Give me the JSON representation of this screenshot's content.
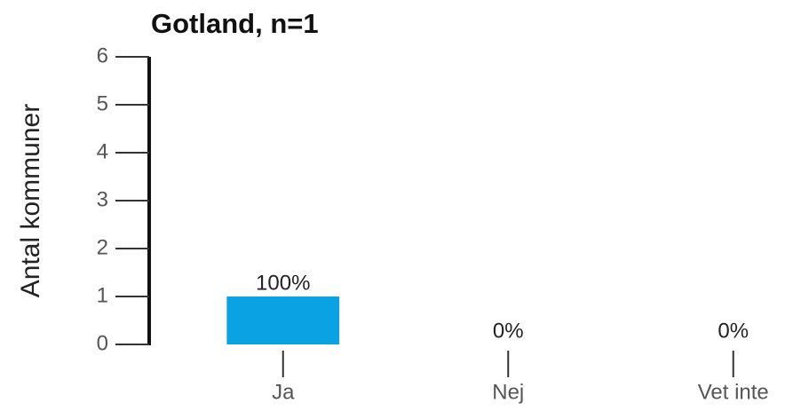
{
  "chart_data": {
    "type": "bar",
    "title": "Gotland, n=1",
    "y_label": "Antal kommuner",
    "categories": [
      "Ja",
      "Nej",
      "Vet inte"
    ],
    "values": [
      1,
      0,
      0
    ],
    "data_labels": [
      "100%",
      "0%",
      "0%"
    ],
    "color": "#0aa2e2",
    "ylim": [
      0,
      6
    ],
    "yticks": [
      0,
      1,
      2,
      3,
      4,
      5,
      6
    ],
    "grid": false
  }
}
